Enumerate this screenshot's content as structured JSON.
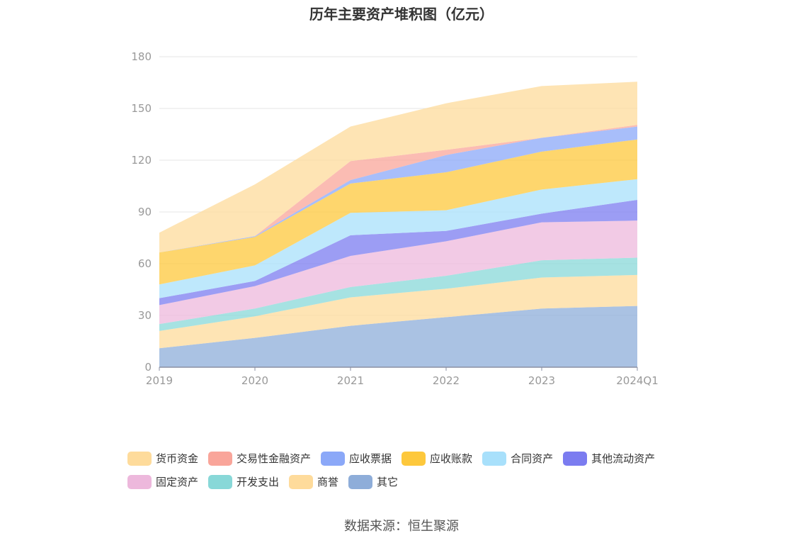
{
  "chart_data": {
    "type": "area",
    "stacked": true,
    "title": "历年主要资产堆积图（亿元）",
    "categories": [
      "2019",
      "2020",
      "2021",
      "2022",
      "2023",
      "2024Q1"
    ],
    "ylim": [
      0,
      180
    ],
    "yticks": [
      0,
      30,
      60,
      90,
      120,
      150,
      180
    ],
    "grid": true,
    "legend_position": "bottom",
    "series": [
      {
        "name": "其它",
        "color": "#8EADD9",
        "values": [
          11,
          17,
          24,
          29,
          34,
          35.5
        ]
      },
      {
        "name": "商誉",
        "color": "#FEDB9B",
        "values": [
          10,
          12.5,
          16.5,
          16.5,
          18,
          18
        ]
      },
      {
        "name": "开发支出",
        "color": "#88D8D8",
        "values": [
          4,
          4.5,
          6,
          7.5,
          10,
          10
        ]
      },
      {
        "name": "固定资产",
        "color": "#EDB8DC",
        "values": [
          11,
          13,
          18,
          20,
          22,
          21.5
        ]
      },
      {
        "name": "其他流动资产",
        "color": "#7B7CF0",
        "values": [
          4,
          3,
          12,
          6,
          5,
          12
        ]
      },
      {
        "name": "合同资产",
        "color": "#A8E0FB",
        "values": [
          8,
          9,
          13,
          12,
          14,
          12
        ]
      },
      {
        "name": "应收账款",
        "color": "#FDC83C",
        "values": [
          18.5,
          16.5,
          17,
          22,
          22,
          23
        ]
      },
      {
        "name": "应收票据",
        "color": "#8BA8F8",
        "values": [
          0,
          0.5,
          2,
          10,
          8,
          7.5
        ]
      },
      {
        "name": "交易性金融资产",
        "color": "#F9A59A",
        "values": [
          0,
          0,
          11,
          3,
          0,
          1
        ]
      },
      {
        "name": "货币资金",
        "color": "#FEDB9B",
        "values": [
          11.5,
          30,
          20,
          27,
          30,
          25
        ]
      }
    ]
  },
  "legend": [
    {
      "name": "货币资金",
      "color": "#FEDB9B"
    },
    {
      "name": "交易性金融资产",
      "color": "#F9A59A"
    },
    {
      "name": "应收票据",
      "color": "#8BA8F8"
    },
    {
      "name": "应收账款",
      "color": "#FDC83C"
    },
    {
      "name": "合同资产",
      "color": "#A8E0FB"
    },
    {
      "name": "其他流动资产",
      "color": "#7B7CF0"
    },
    {
      "name": "固定资产",
      "color": "#EDB8DC"
    },
    {
      "name": "开发支出",
      "color": "#88D8D8"
    },
    {
      "name": "商誉",
      "color": "#FEDB9B"
    },
    {
      "name": "其它",
      "color": "#8EADD9"
    }
  ],
  "source": "数据来源：恒生聚源"
}
